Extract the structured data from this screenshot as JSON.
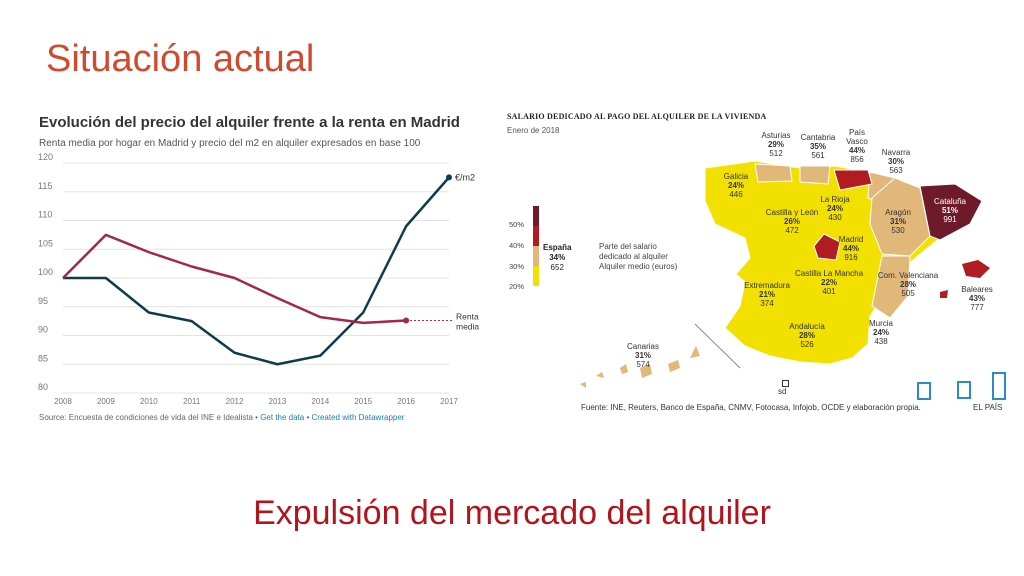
{
  "slide": {
    "title": "Situación actual",
    "bottom_title": "Expulsión del mercado del alquiler"
  },
  "line_chart": {
    "title": "Evolución del precio del alquiler frente a la renta en Madrid",
    "subtitle": "Renta media por hogar en Madrid y precio del m2 en alquiler expresados en base 100",
    "source": "Source: Encuesta de condiciones de vida del INE e Idealista",
    "get_data": "Get the data",
    "created_with": "Created with Datawrapper",
    "separator": "•",
    "colors": {
      "rent": "#0f3b4a",
      "income": "#a3274a",
      "grid": "#e3e3e3"
    }
  },
  "chart_data": {
    "type": "line",
    "x": [
      "2008",
      "2009",
      "2010",
      "2011",
      "2012",
      "2013",
      "2014",
      "2015",
      "2016",
      "2017"
    ],
    "ylim": [
      80,
      120
    ],
    "yticks": [
      "80",
      "85",
      "90",
      "95",
      "100",
      "105",
      "110",
      "115",
      "120"
    ],
    "grid": true,
    "series": [
      {
        "name": "€/m2",
        "values": [
          100,
          100,
          94,
          92.5,
          87,
          85,
          86.5,
          94,
          109,
          117.5
        ]
      },
      {
        "name": "Renta media",
        "values": [
          100,
          107.5,
          104.5,
          102,
          100,
          96.5,
          93.2,
          92.2,
          92.6,
          null
        ]
      }
    ]
  },
  "map": {
    "title": "SALARIO DEDICADO AL PAGO DEL ALQUILER DE LA VIVIENDA",
    "subtitle": "Enero de 2018",
    "source": "Fuente: INE, Reuters, Banco de España, CNMV, Fotocasa, Infojob, OCDE y elaboración propia.",
    "brand": "EL PAÍS",
    "sd": "sd",
    "legend": {
      "ticks": [
        "50%",
        "40%",
        "30%",
        "20%"
      ],
      "espana_name": "España",
      "espana_pct": "34%",
      "espana_rent": "652",
      "desc_line1": "Parte del salario",
      "desc_line2": "dedicado al alquiler",
      "desc_line3": "Alquiler medio (euros)"
    },
    "colors": {
      "low": "#f2e100",
      "mid": "#e2b87a",
      "high": "#b01c22",
      "top": "#6e1a2a"
    },
    "regions": [
      {
        "name": "Asturias",
        "pct": "29%",
        "rent": "512"
      },
      {
        "name": "Cantabria",
        "pct": "35%",
        "rent": "561"
      },
      {
        "name": "País",
        "name2": "Vasco",
        "pct": "44%",
        "rent": "856"
      },
      {
        "name": "Navarra",
        "pct": "30%",
        "rent": "563"
      },
      {
        "name": "Galicia",
        "pct": "24%",
        "rent": "446"
      },
      {
        "name": "Cataluña",
        "pct": "51%",
        "rent": "991"
      },
      {
        "name": "La Rioja",
        "pct": "24%",
        "rent": "430"
      },
      {
        "name": "Castilla y León",
        "pct": "26%",
        "rent": "472"
      },
      {
        "name": "Aragón",
        "pct": "31%",
        "rent": "530"
      },
      {
        "name": "Madrid",
        "pct": "44%",
        "rent": "916"
      },
      {
        "name": "Baleares",
        "pct": "43%",
        "rent": "777"
      },
      {
        "name": "Castilla La Mancha",
        "pct": "22%",
        "rent": "401"
      },
      {
        "name": "Com. Valenciana",
        "pct": "28%",
        "rent": "505"
      },
      {
        "name": "Extremadura",
        "pct": "21%",
        "rent": "374"
      },
      {
        "name": "Andalucía",
        "pct": "28%",
        "rent": "526"
      },
      {
        "name": "Murcia",
        "pct": "24%",
        "rent": "438"
      },
      {
        "name": "Canarias",
        "pct": "31%",
        "rent": "574"
      }
    ]
  }
}
